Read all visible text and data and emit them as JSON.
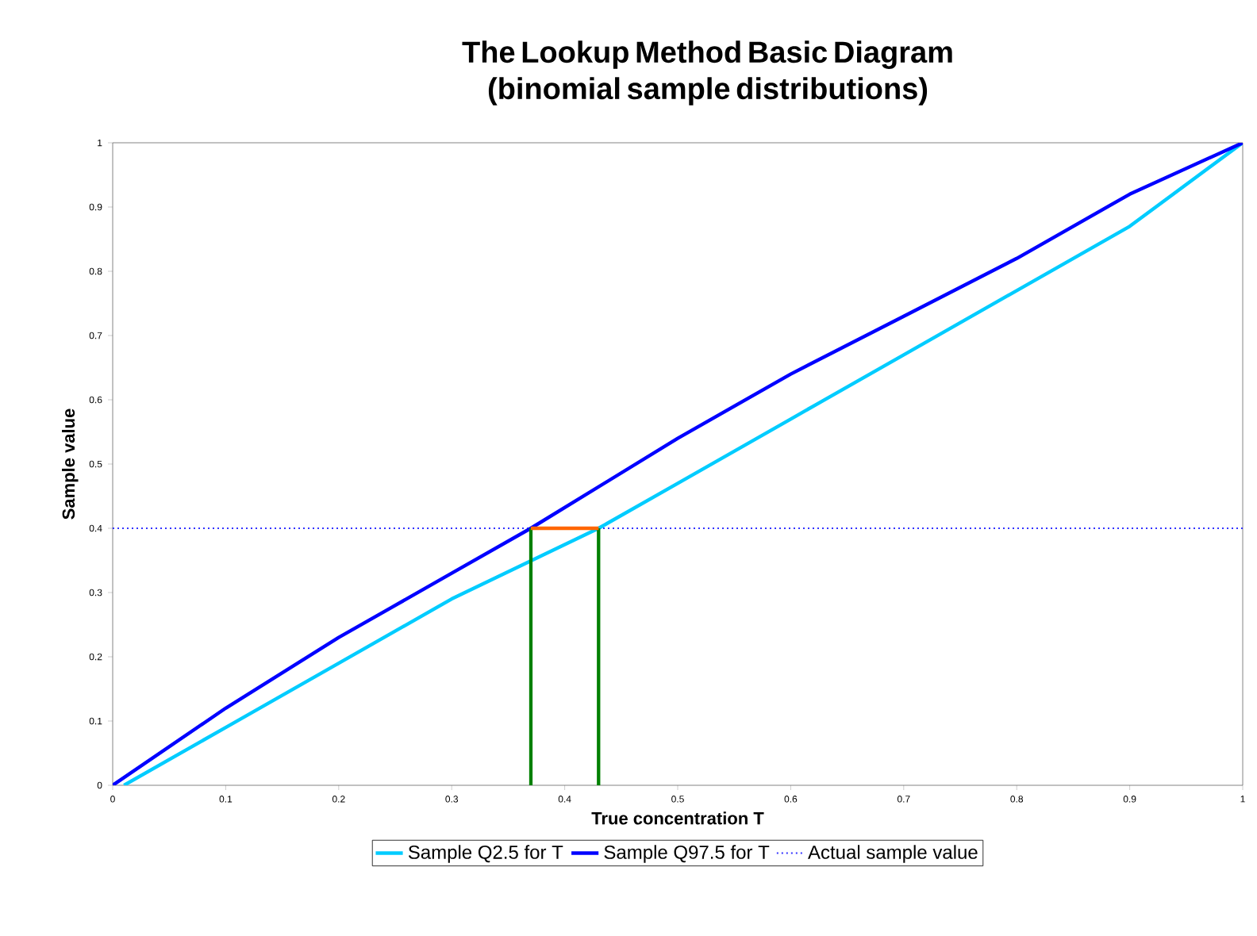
{
  "chart_data": {
    "type": "line",
    "title": "The Lookup Method Basic Diagram\n(binomial sample distributions)",
    "xlabel": "True concentration T",
    "ylabel": "Sample value",
    "xlim": [
      0,
      1
    ],
    "ylim": [
      0,
      1
    ],
    "xticks": [
      0,
      0.1,
      0.2,
      0.3,
      0.4,
      0.5,
      0.6,
      0.7,
      0.8,
      0.9,
      1
    ],
    "yticks": [
      0,
      0.1,
      0.2,
      0.3,
      0.4,
      0.5,
      0.6,
      0.7,
      0.8,
      0.9,
      1
    ],
    "grid": false,
    "legend": "bottom",
    "series": [
      {
        "name": "Sample Q2.5 for T",
        "color": "#00ccff",
        "x": [
          0.01,
          0.1,
          0.2,
          0.3,
          0.43,
          0.5,
          0.6,
          0.7,
          0.8,
          0.9,
          1
        ],
        "values": [
          0,
          0.09,
          0.19,
          0.29,
          0.4,
          0.47,
          0.57,
          0.67,
          0.77,
          0.87,
          1
        ]
      },
      {
        "name": "Sample Q97.5 for T",
        "color": "#0000ff",
        "x": [
          0,
          0.1,
          0.2,
          0.3,
          0.37,
          0.5,
          0.6,
          0.7,
          0.8,
          0.9,
          1
        ],
        "values": [
          0,
          0.12,
          0.23,
          0.33,
          0.4,
          0.54,
          0.64,
          0.73,
          0.82,
          0.92,
          1
        ]
      },
      {
        "color": "#008000",
        "x": [
          0.37,
          0.37
        ],
        "values": [
          0,
          0.4
        ]
      },
      {
        "color": "#008000",
        "x": [
          0.43,
          0.43
        ],
        "values": [
          0,
          0.4
        ]
      },
      {
        "color": "#ff6600",
        "x": [
          0.37,
          0.43
        ],
        "values": [
          0.4,
          0.4
        ]
      }
    ],
    "ref_lines": [
      {
        "axis": "y",
        "value": 0.4,
        "label": "Actual sample value",
        "color": "#3333ff",
        "line_style": "dotted"
      }
    ]
  }
}
